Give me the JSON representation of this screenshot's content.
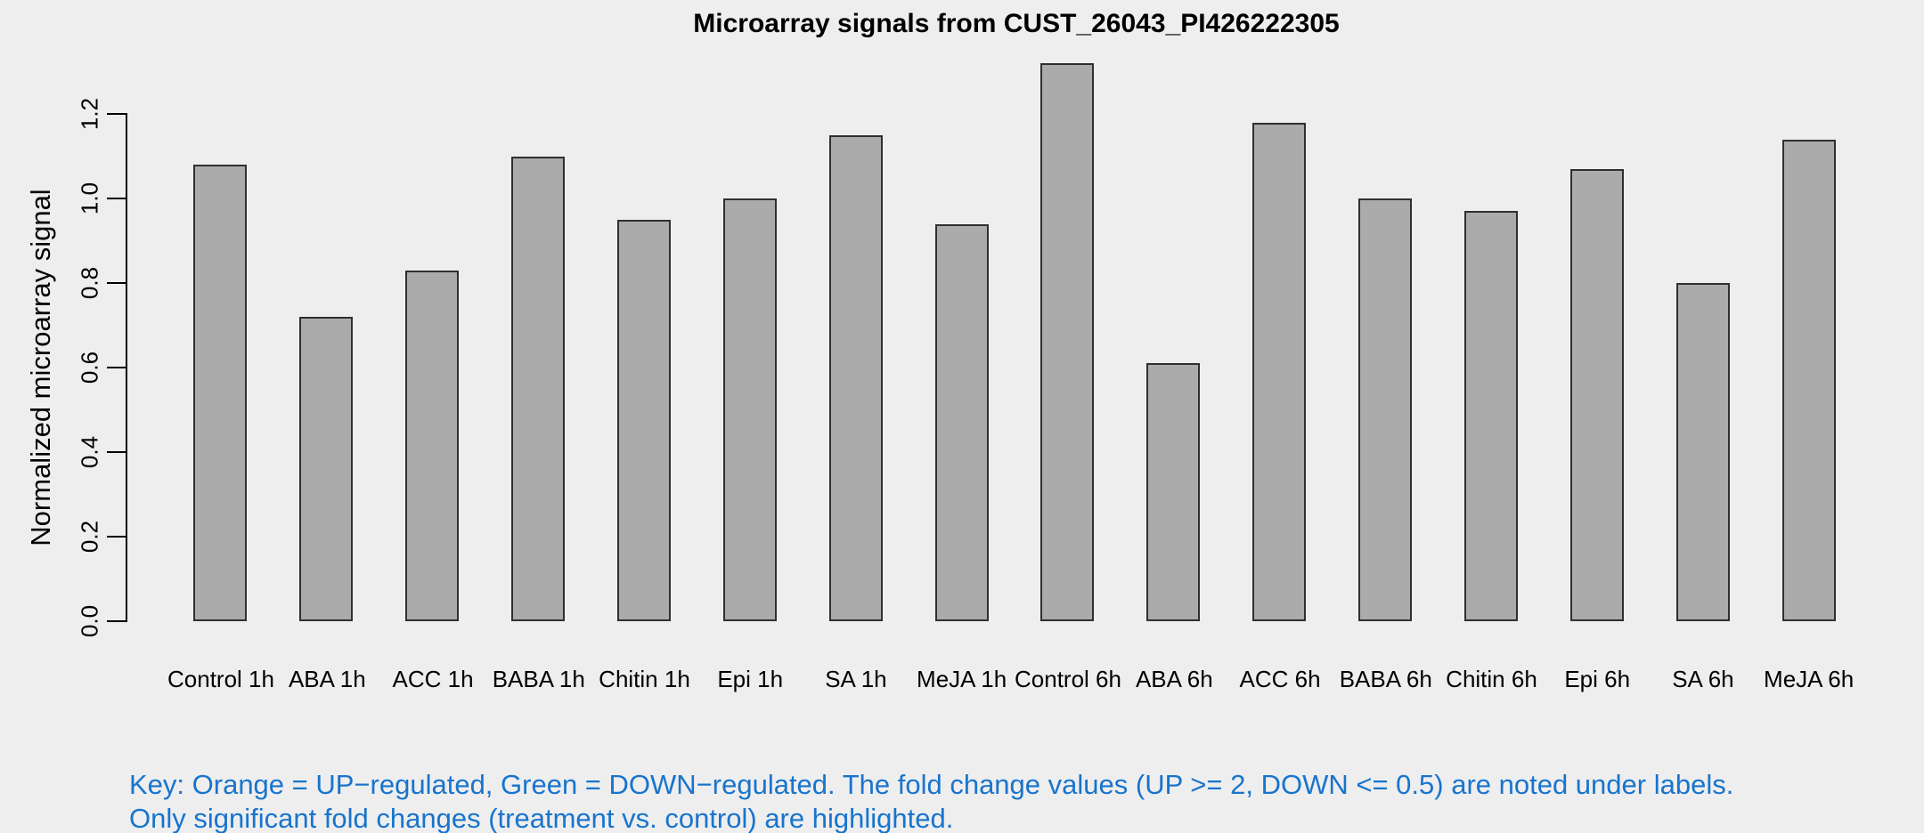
{
  "chart_data": {
    "type": "bar",
    "title": "Microarray signals from CUST_26043_PI426222305",
    "ylabel": "Normalized microarray signal",
    "xlabel": "",
    "categories": [
      "Control 1h",
      "ABA 1h",
      "ACC 1h",
      "BABA 1h",
      "Chitin 1h",
      "Epi 1h",
      "SA 1h",
      "MeJA 1h",
      "Control 6h",
      "ABA 6h",
      "ACC 6h",
      "BABA 6h",
      "Chitin 6h",
      "Epi 6h",
      "SA 6h",
      "MeJA 6h"
    ],
    "values": [
      1.08,
      0.72,
      0.83,
      1.1,
      0.95,
      1.0,
      1.15,
      0.94,
      1.32,
      0.61,
      1.18,
      1.0,
      0.97,
      1.07,
      0.8,
      1.14
    ],
    "yticks": [
      0.0,
      0.2,
      0.4,
      0.6,
      0.8,
      1.0,
      1.2
    ],
    "ylim": [
      0,
      1.2
    ],
    "grid": false,
    "legend": "none"
  },
  "footer": {
    "line1": "Key: Orange = UP−regulated, Green = DOWN−regulated. The fold change values (UP >= 2, DOWN <= 0.5) are noted under labels.",
    "line2": "Only significant fold changes (treatment vs. control) are highlighted."
  },
  "colors": {
    "background": "#EEEEEE",
    "bar_fill": "#ABABAB",
    "bar_border": "#2F2F2F",
    "axis": "#000000",
    "key_text": "#1874CD"
  }
}
